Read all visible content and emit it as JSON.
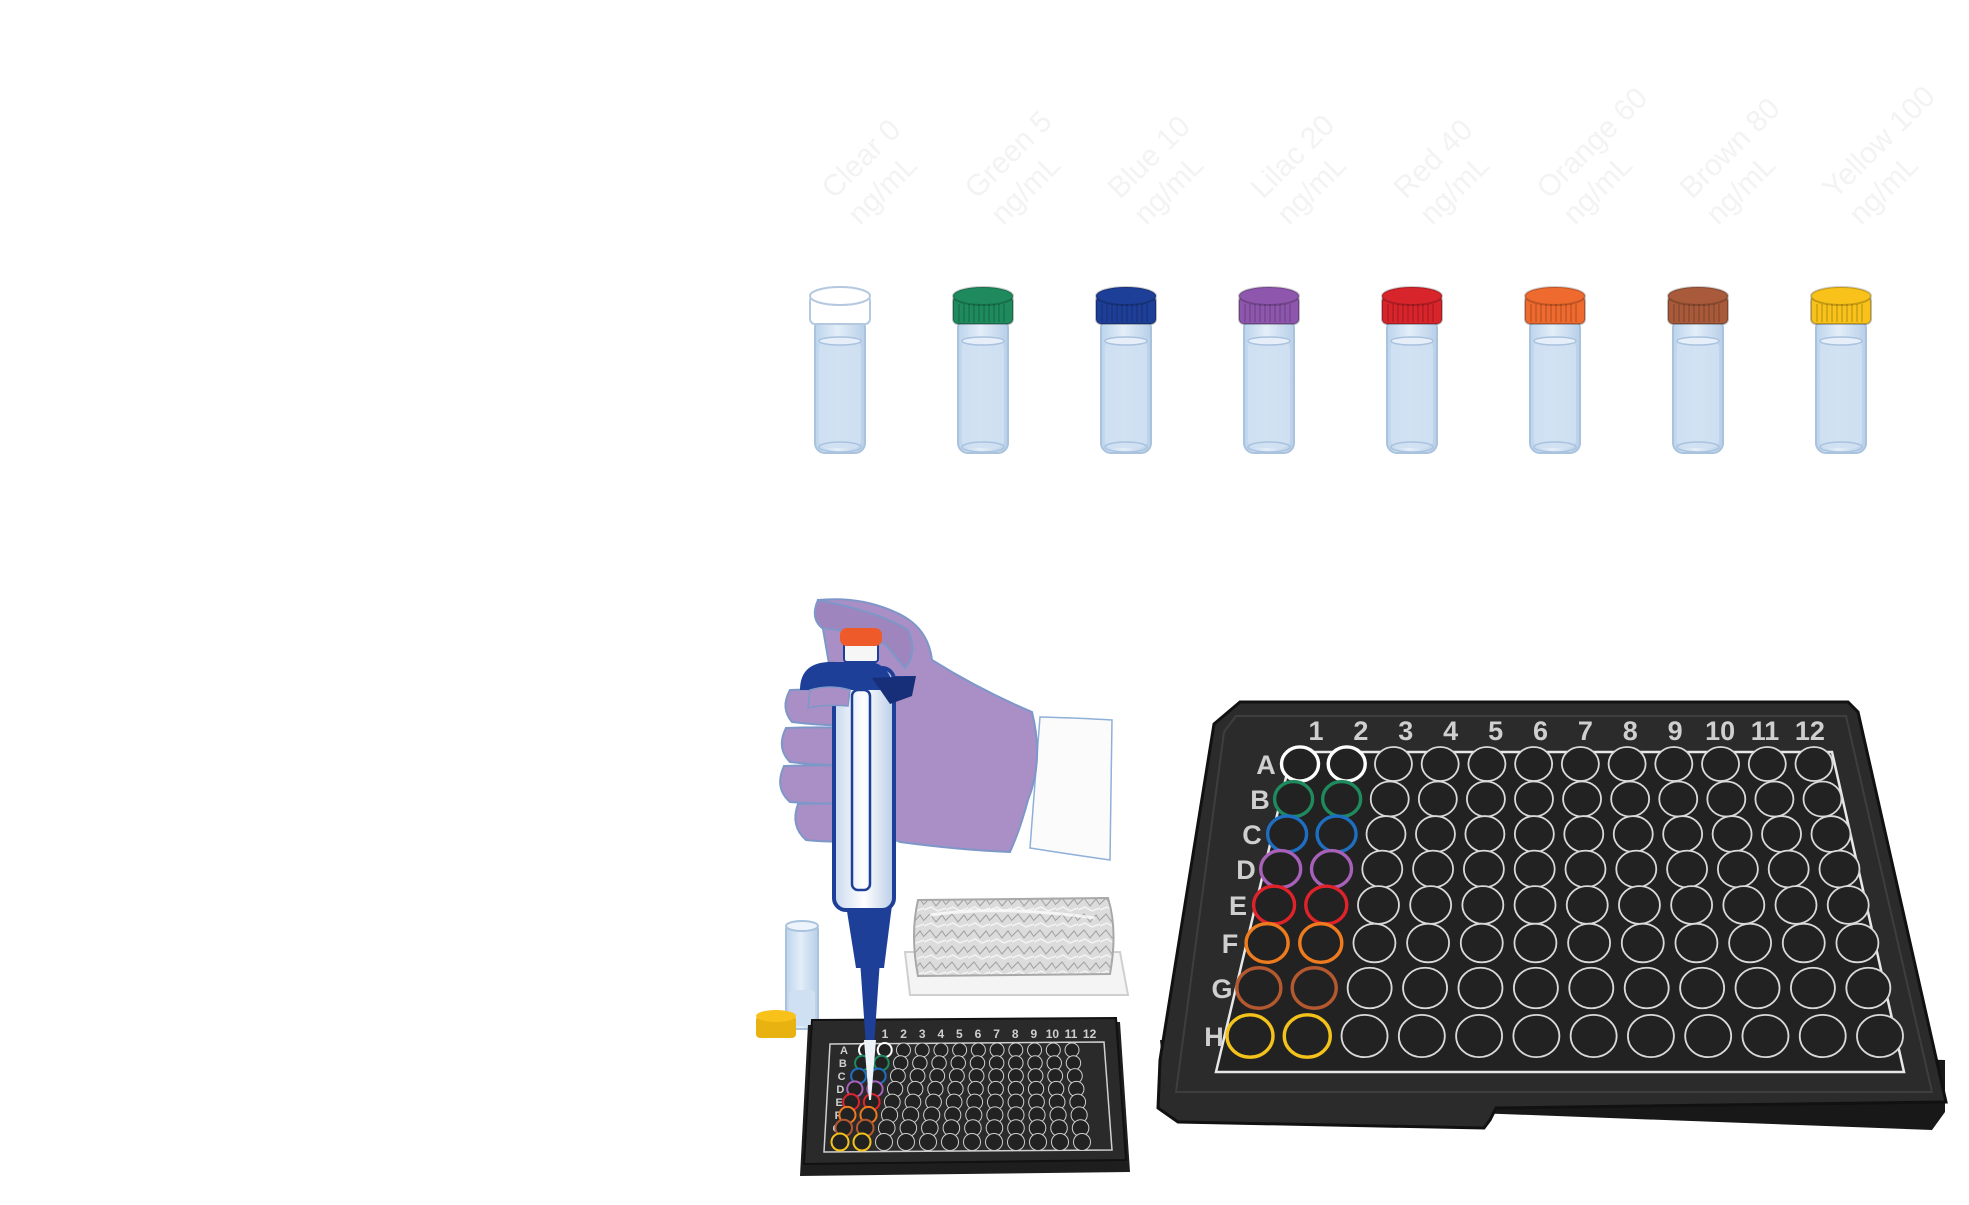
{
  "vials": [
    {
      "name": "Clear",
      "conc": "0",
      "unit": "ng/mL",
      "cap_color": "#ffffff",
      "well_color": "#ffffff"
    },
    {
      "name": "Green",
      "conc": "5",
      "unit": "ng/mL",
      "cap_color": "#1f8a5e",
      "well_color": "#1f8a5e"
    },
    {
      "name": "Blue",
      "conc": "10",
      "unit": "ng/mL",
      "cap_color": "#1e3f98",
      "well_color": "#1e6fc0"
    },
    {
      "name": "Lilac",
      "conc": "20",
      "unit": "ng/mL",
      "cap_color": "#8e57ad",
      "well_color": "#a861b8"
    },
    {
      "name": "Red",
      "conc": "40",
      "unit": "ng/mL",
      "cap_color": "#d8242b",
      "well_color": "#e0232a"
    },
    {
      "name": "Orange",
      "conc": "60",
      "unit": "ng/mL",
      "cap_color": "#ef6a2e",
      "well_color": "#ef7b1f"
    },
    {
      "name": "Brown",
      "conc": "80",
      "unit": "ng/mL",
      "cap_color": "#a85a3a",
      "well_color": "#b4582f"
    },
    {
      "name": "Yellow",
      "conc": "100",
      "unit": "ng/mL",
      "cap_color": "#f8c21a",
      "well_color": "#f3c21b"
    }
  ],
  "plate": {
    "columns": [
      "1",
      "2",
      "3",
      "4",
      "5",
      "6",
      "7",
      "8",
      "9",
      "10",
      "11",
      "12"
    ],
    "rows": [
      "A",
      "B",
      "C",
      "D",
      "E",
      "F",
      "G",
      "H"
    ],
    "filled_columns": 2,
    "body_color": "#2b2b2b",
    "empty_well_color": "#d9d9d9"
  },
  "small_plate": {
    "columns": [
      "1",
      "2",
      "3",
      "4",
      "5",
      "6",
      "7",
      "8",
      "9",
      "10",
      "11",
      "12"
    ],
    "rows": [
      "A",
      "B",
      "C",
      "D",
      "E",
      "F",
      "G",
      "H"
    ]
  },
  "colors": {
    "glove": "#a98fc5",
    "pipette_blue": "#1e3f98",
    "pipette_button": "#ef5a2a",
    "liquid": "#cfe0f2",
    "foil": "#d8d8d8"
  }
}
